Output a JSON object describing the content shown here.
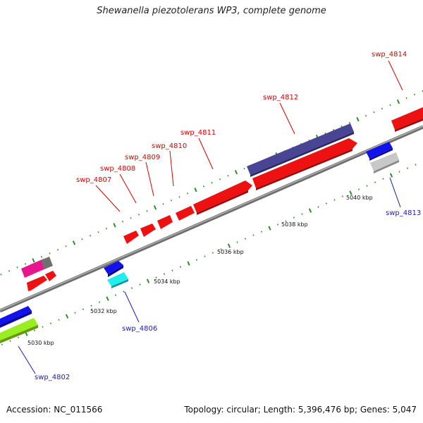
{
  "title": "Shewanella piezotolerans WP3, complete genome",
  "footer": {
    "accession": "Accession: NC_011566",
    "stats": "Topology: circular; Length: 5,396,476 bp; Genes: 5,047"
  },
  "colors": {
    "backbone": "#8c8c8c",
    "tick": "#2e8b2e",
    "label_red": "#dd0000",
    "label_blue": "#1a1acc"
  },
  "scale": {
    "unit": "kbp",
    "labels": [
      {
        "kbp": 5030,
        "text": "5030 kbp"
      },
      {
        "kbp": 5032,
        "text": "5032 kbp"
      },
      {
        "kbp": 5034,
        "text": "5034 kbp"
      },
      {
        "kbp": 5036,
        "text": "5036 kbp"
      },
      {
        "kbp": 5038,
        "text": "5038 kbp"
      },
      {
        "kbp": 5040,
        "text": "5040 kbp"
      }
    ]
  },
  "genes": [
    {
      "id": "g1",
      "color": "#e8168c",
      "strand": "outer",
      "start": 5030.45,
      "end": 5030.95,
      "arrow": false
    },
    {
      "id": "g2",
      "color": "#707070",
      "strand": "outer",
      "start": 5030.95,
      "end": 5031.15,
      "arrow": true
    },
    {
      "id": "g3",
      "color": "#ee1111",
      "strand": "inner",
      "start": 5030.55,
      "end": 5031.0,
      "arrow": true
    },
    {
      "id": "g4",
      "color": "#ee1111",
      "strand": "inner",
      "start": 5031.05,
      "end": 5031.25,
      "arrow": true
    },
    {
      "id": "g5",
      "color": "#1212ee",
      "strand": "outer2",
      "start": 5028.6,
      "end": 5029.8,
      "arrow": true
    },
    {
      "id": "g6",
      "color": "#99ee22",
      "strand": "inner2",
      "start": 5028.6,
      "end": 5029.8,
      "arrow": true
    },
    {
      "id": "g7",
      "color": "#1212ee",
      "strand": "outer",
      "start": 5033.05,
      "end": 5033.55,
      "arrow": true
    },
    {
      "id": "g8",
      "color": "#22eeee",
      "strand": "inner",
      "start": 5033.05,
      "end": 5033.55,
      "arrow": true
    },
    {
      "id": "g9",
      "color": "#ee1111",
      "strand": "outer",
      "start": 5034.6,
      "end": 5035.0,
      "arrow": true
    },
    {
      "id": "g10",
      "color": "#ee1111",
      "strand": "outer",
      "start": 5035.15,
      "end": 5035.6,
      "arrow": true
    },
    {
      "id": "g11",
      "color": "#ee1111",
      "strand": "outer",
      "start": 5035.75,
      "end": 5036.2,
      "arrow": true
    },
    {
      "id": "g12",
      "color": "#ee1111",
      "strand": "outer",
      "start": 5036.35,
      "end": 5036.95,
      "arrow": true
    },
    {
      "id": "g13",
      "color": "#ee1111",
      "strand": "outer",
      "start": 5037.0,
      "end": 5039.0,
      "arrow": true
    },
    {
      "id": "g14",
      "color": "#4a4495",
      "strand": "outer2",
      "start": 5037.5,
      "end": 5041.7,
      "arrow": false
    },
    {
      "id": "g15",
      "color": "#ee1111",
      "strand": "outer",
      "start": 5039.1,
      "end": 5042.7,
      "arrow": true
    },
    {
      "id": "g16",
      "color": "#1212ee",
      "strand": "outer3",
      "start": 5042.0,
      "end": 5042.8,
      "arrow": true
    },
    {
      "id": "g17",
      "color": "#c8c8c8",
      "strand": "outer4",
      "start": 5042.0,
      "end": 5042.8,
      "arrow": true
    },
    {
      "id": "g18",
      "color": "#ee1111",
      "strand": "outer2",
      "start": 5042.9,
      "end": 5044.0,
      "arrow": false
    }
  ],
  "labels": [
    {
      "text": "swp_4802",
      "color": "blue"
    },
    {
      "text": "swp_4806",
      "color": "blue"
    },
    {
      "text": "swp_4807",
      "color": "red"
    },
    {
      "text": "swp_4808",
      "color": "red"
    },
    {
      "text": "swp_4809",
      "color": "red"
    },
    {
      "text": "swp_4810",
      "color": "red"
    },
    {
      "text": "swp_4811",
      "color": "red"
    },
    {
      "text": "swp_4812",
      "color": "red"
    },
    {
      "text": "swp_4813",
      "color": "blue"
    },
    {
      "text": "swp_4814",
      "color": "red"
    }
  ]
}
